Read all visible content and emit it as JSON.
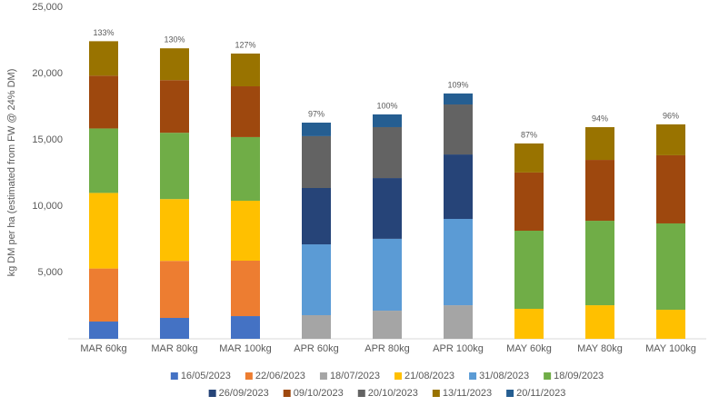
{
  "chart_data": {
    "type": "stacked-bar",
    "y_label": "kg DM per ha (estimated from FW @ 24% DM)",
    "categories": [
      "MAR 60kg",
      "MAR 80kg",
      "MAR 100kg",
      "APR 60kg",
      "APR 80kg",
      "APR 100kg",
      "MAY 60kg",
      "MAY 80kg",
      "MAY 100kg"
    ],
    "bar_labels": [
      "133%",
      "130%",
      "127%",
      "97%",
      "100%",
      "109%",
      "87%",
      "94%",
      "96%"
    ],
    "ylim": [
      0,
      25000
    ],
    "yticks": [
      {
        "value": 5000,
        "label": "5,000"
      },
      {
        "value": 10000,
        "label": "10,000"
      },
      {
        "value": 15000,
        "label": "15,000"
      },
      {
        "value": 20000,
        "label": "20,000"
      },
      {
        "value": 25000,
        "label": "25,000"
      }
    ],
    "series": [
      {
        "name": "16/05/2023",
        "color": "#4472c4",
        "values": [
          1300,
          1575,
          1710,
          null,
          null,
          null,
          null,
          null,
          null
        ]
      },
      {
        "name": "22/06/2023",
        "color": "#ed7d31",
        "values": [
          4000,
          4300,
          4180,
          null,
          null,
          null,
          null,
          null,
          null
        ]
      },
      {
        "name": "18/07/2023",
        "color": "#a5a5a5",
        "values": [
          null,
          null,
          null,
          1780,
          2120,
          2530,
          null,
          null,
          null
        ]
      },
      {
        "name": "21/08/2023",
        "color": "#ffc000",
        "values": [
          5700,
          4660,
          4520,
          null,
          null,
          null,
          2260,
          2530,
          2190
        ]
      },
      {
        "name": "31/08/2023",
        "color": "#5b9bd5",
        "values": [
          null,
          null,
          null,
          5340,
          5420,
          6510,
          null,
          null,
          null
        ]
      },
      {
        "name": "18/09/2023",
        "color": "#70ad47",
        "values": [
          4860,
          5000,
          4800,
          null,
          null,
          null,
          5890,
          6370,
          6510
        ]
      },
      {
        "name": "26/09/2023",
        "color": "#264478",
        "values": [
          null,
          null,
          null,
          4250,
          4580,
          4860,
          null,
          null,
          null
        ]
      },
      {
        "name": "09/10/2023",
        "color": "#9e480e",
        "values": [
          3980,
          3970,
          3830,
          null,
          null,
          null,
          4390,
          4590,
          5140
        ]
      },
      {
        "name": "20/10/2023",
        "color": "#636363",
        "values": [
          null,
          null,
          null,
          3910,
          3840,
          3770,
          null,
          null,
          null
        ]
      },
      {
        "name": "13/11/2023",
        "color": "#997300",
        "values": [
          2600,
          2400,
          2470,
          null,
          null,
          null,
          2190,
          2470,
          2330
        ]
      },
      {
        "name": "20/11/2023",
        "color": "#255e91",
        "values": [
          null,
          null,
          null,
          1020,
          960,
          830,
          null,
          null,
          null
        ]
      }
    ]
  }
}
